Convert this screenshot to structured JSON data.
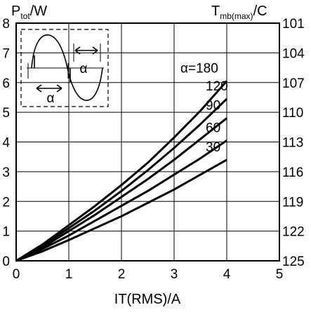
{
  "chart_data": {
    "type": "line",
    "xlabel": "IT(RMS)/A",
    "ylabel": {
      "main": "P",
      "sub": "tot",
      "unit": "/W"
    },
    "y2label": {
      "main": "T",
      "sub": "mb(max)",
      "unit": "/C"
    },
    "xlim": [
      0,
      5
    ],
    "ylim": [
      0,
      8
    ],
    "x_ticks": [
      0,
      1,
      2,
      3,
      4,
      5
    ],
    "y_ticks": [
      0,
      1,
      2,
      3,
      4,
      5,
      6,
      7,
      8
    ],
    "y2_ticks": [
      {
        "y": 8,
        "label": "101"
      },
      {
        "y": 7,
        "label": "104"
      },
      {
        "y": 6,
        "label": "107"
      },
      {
        "y": 5,
        "label": "110"
      },
      {
        "y": 4,
        "label": "113"
      },
      {
        "y": 3,
        "label": "116"
      },
      {
        "y": 2,
        "label": "119"
      },
      {
        "y": 1,
        "label": "122"
      },
      {
        "y": 0,
        "label": "125"
      }
    ],
    "grid": true,
    "series": [
      {
        "name": "α=180",
        "x": [
          0,
          0.5,
          1,
          1.5,
          2,
          2.5,
          3,
          3.5,
          4
        ],
        "y": [
          0,
          0.55,
          1.2,
          1.85,
          2.55,
          3.3,
          4.15,
          5.05,
          6.05
        ]
      },
      {
        "name": "120",
        "x": [
          0,
          0.5,
          1,
          1.5,
          2,
          2.5,
          3,
          3.5,
          4
        ],
        "y": [
          0,
          0.5,
          1.1,
          1.7,
          2.35,
          3.05,
          3.8,
          4.6,
          5.45
        ]
      },
      {
        "name": "90",
        "x": [
          0,
          0.5,
          1,
          1.5,
          2,
          2.5,
          3,
          3.5,
          4
        ],
        "y": [
          0,
          0.45,
          1.0,
          1.55,
          2.15,
          2.75,
          3.4,
          4.1,
          4.8
        ]
      },
      {
        "name": "60",
        "x": [
          0,
          0.5,
          1,
          1.5,
          2,
          2.5,
          3,
          3.5,
          4
        ],
        "y": [
          0,
          0.4,
          0.85,
          1.35,
          1.85,
          2.35,
          2.9,
          3.45,
          4.05
        ]
      },
      {
        "name": "30",
        "x": [
          0,
          0.5,
          1,
          1.5,
          2,
          2.5,
          3,
          3.5,
          4
        ],
        "y": [
          0,
          0.32,
          0.7,
          1.1,
          1.5,
          1.95,
          2.4,
          2.9,
          3.4
        ]
      }
    ],
    "inset": {
      "labels": [
        "α",
        "α"
      ]
    }
  }
}
